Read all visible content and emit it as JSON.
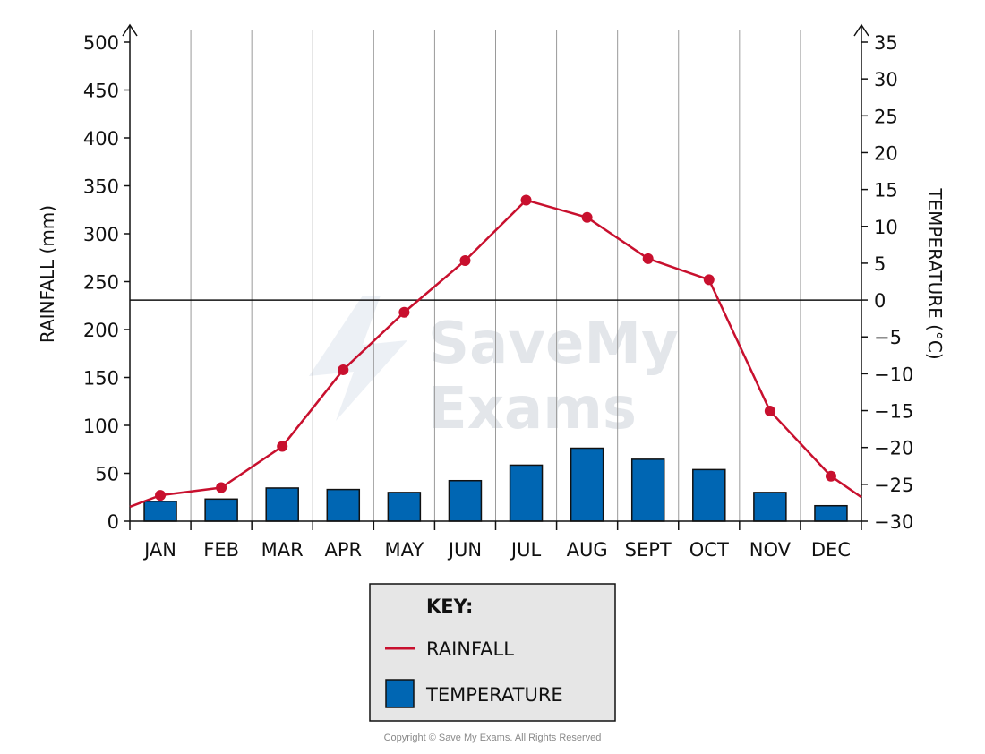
{
  "chart_data": {
    "type": "bar+line",
    "categories": [
      "JAN",
      "FEB",
      "MAR",
      "APR",
      "MAY",
      "JUN",
      "JUL",
      "AUG",
      "SEPT",
      "OCT",
      "NOV",
      "DEC"
    ],
    "series": [
      {
        "name": "RAINFALL",
        "axis": "left",
        "style": "line",
        "values": [
          27,
          35,
          78,
          158,
          218,
          272,
          335,
          317,
          274,
          252,
          115,
          47
        ]
      },
      {
        "name": "TEMPERATURE",
        "axis": "right",
        "style": "bar",
        "values": [
          -27.3,
          -27.0,
          -25.5,
          -25.7,
          -26.1,
          -24.5,
          -22.4,
          -20.1,
          -21.6,
          -23.0,
          -26.1,
          -27.9
        ]
      }
    ],
    "line_start_value": 15,
    "line_end_value": 25,
    "ylabel_left": "RAINFALL (mm)",
    "ylabel_right": "TEMPERATURE (°C)",
    "ylim_left": [
      0,
      500
    ],
    "ylim_right": [
      -30,
      35
    ],
    "yticks_left": [
      0,
      50,
      100,
      150,
      200,
      250,
      300,
      350,
      400,
      450,
      500
    ],
    "yticks_right": [
      -30,
      -25,
      -20,
      -15,
      -10,
      -5,
      0,
      5,
      10,
      15,
      20,
      25,
      30,
      35
    ],
    "zero_line_right": 0,
    "colors": {
      "rainfall": "#c8102e",
      "temperature": "#0066b3",
      "grid": "#9a9a9a",
      "axis": "#111111",
      "key_bg": "#e6e6e6"
    }
  },
  "key": {
    "title": "KEY:",
    "items": [
      {
        "label": "RAINFALL",
        "icon": "line-swatch"
      },
      {
        "label": "TEMPERATURE",
        "icon": "bar-swatch"
      }
    ]
  },
  "watermark": {
    "line1": "SaveMy",
    "line2": "Exams"
  },
  "copyright": "Copyright © Save My Exams. All Rights Reserved"
}
